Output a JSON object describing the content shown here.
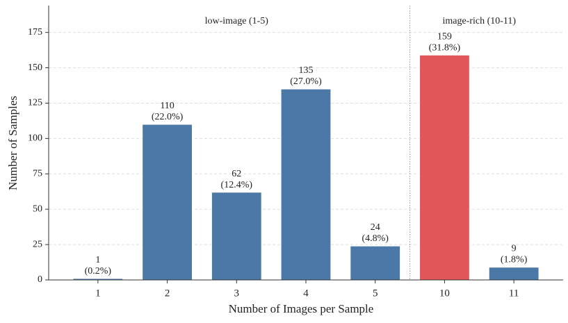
{
  "chart_data": {
    "type": "bar",
    "x_label": "Number of Images per Sample",
    "y_label": "Number of Samples",
    "categories": [
      "1",
      "2",
      "3",
      "4",
      "5",
      "10",
      "11"
    ],
    "values": [
      1,
      110,
      62,
      135,
      24,
      159,
      9
    ],
    "value_labels": [
      "1\n(0.2%)",
      "110\n(22.0%)",
      "62\n(12.4%)",
      "135\n(27.0%)",
      "24\n(4.8%)",
      "159\n(31.8%)",
      "9\n(1.8%)"
    ],
    "colors": [
      "#4c78a8",
      "#4c78a8",
      "#4c78a8",
      "#4c78a8",
      "#4c78a8",
      "#e15759",
      "#4c78a8"
    ],
    "annotations": [
      "low-image  (1-5)",
      "image-rich  (10-11)"
    ],
    "ylim": [
      0,
      194
    ],
    "yticks": [
      0,
      25,
      50,
      75,
      100,
      125,
      150,
      175
    ],
    "grid": true
  }
}
